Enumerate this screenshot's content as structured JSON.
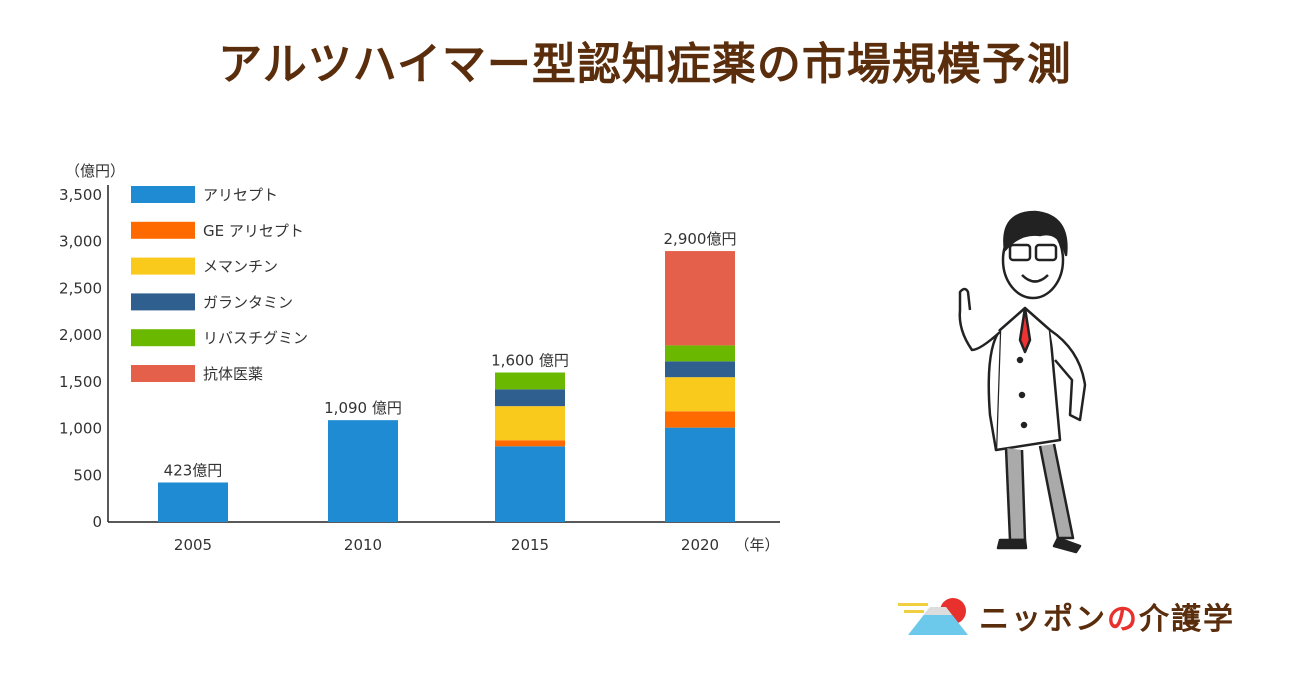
{
  "title": "アルツハイマー型認知症薬の市場規模予測",
  "chart_data": {
    "type": "bar",
    "stacked": true,
    "title": "アルツハイマー型認知症薬の市場規模予測",
    "ylabel": "（億円）",
    "xlabel": "（年）",
    "ylim": [
      0,
      3500
    ],
    "yticks": [
      0,
      500,
      1000,
      1500,
      2000,
      2500,
      3000,
      3500
    ],
    "ytick_labels": [
      "0",
      "500",
      "1,000",
      "1,500",
      "2,000",
      "2,500",
      "3,000",
      "3,500"
    ],
    "categories": [
      "2005",
      "2010",
      "2015",
      "2020"
    ],
    "series": [
      {
        "name": "アリセプト",
        "color": "#1e8bd3",
        "values": [
          423,
          1090,
          810,
          1010
        ]
      },
      {
        "name": "GE アリセプト",
        "color": "#ff6a00",
        "values": [
          0,
          0,
          65,
          175
        ]
      },
      {
        "name": "メマンチン",
        "color": "#f9ca1c",
        "values": [
          0,
          0,
          365,
          365
        ]
      },
      {
        "name": "ガランタミン",
        "color": "#2f5f8f",
        "values": [
          0,
          0,
          180,
          170
        ]
      },
      {
        "name": "リバスチグミン",
        "color": "#6ab800",
        "values": [
          0,
          0,
          180,
          170
        ]
      },
      {
        "name": "抗体医薬",
        "color": "#e5604a",
        "values": [
          0,
          0,
          0,
          1010
        ]
      }
    ],
    "totals": [
      423,
      1090,
      1600,
      2900
    ],
    "total_labels": [
      "423億円",
      "1,090 億円",
      "1,600 億円",
      "2,900億円"
    ],
    "legend": "top-left",
    "grid": false
  },
  "logo": {
    "name_a": "ニッポン",
    "name_no": "の",
    "name_b": "介護学"
  }
}
